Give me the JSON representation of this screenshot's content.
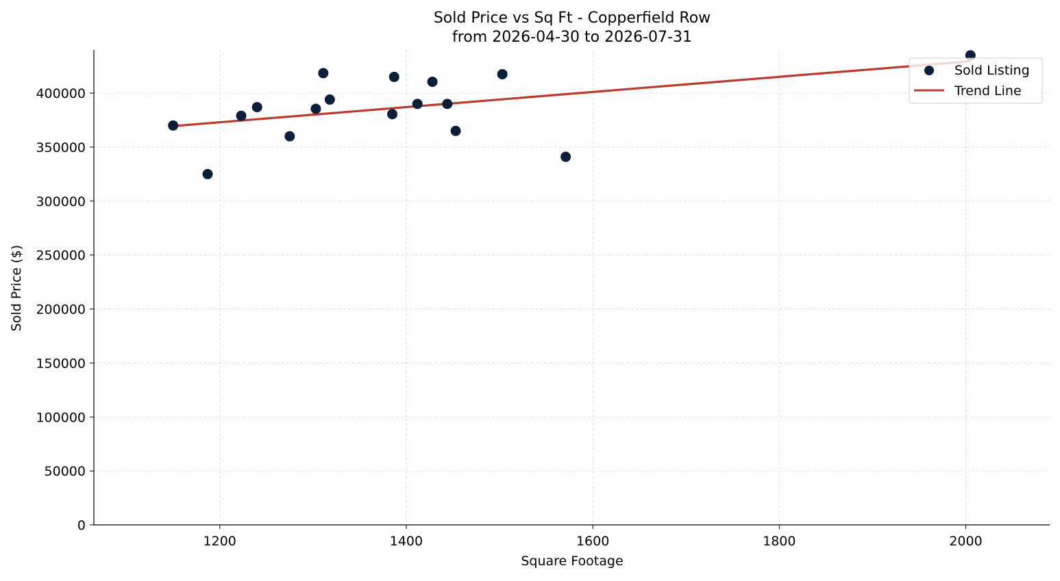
{
  "chart_data": {
    "type": "scatter",
    "title": "Sold Price vs Sq Ft - Copperfield Row",
    "subtitle": "from 2026-04-30 to 2026-07-31",
    "xlabel": "Square Footage",
    "ylabel": "Sold Price ($)",
    "xlim": [
      1065,
      2090
    ],
    "ylim": [
      0,
      440000
    ],
    "xticks": [
      1200,
      1400,
      1600,
      1800,
      2000
    ],
    "yticks": [
      0,
      50000,
      100000,
      150000,
      200000,
      250000,
      300000,
      350000,
      400000
    ],
    "grid": true,
    "legend_position": "top-right",
    "series": [
      {
        "name": "Sold Listing",
        "kind": "scatter",
        "color": "#0b1f3a",
        "points": [
          {
            "x": 1150,
            "y": 370000
          },
          {
            "x": 1187,
            "y": 325000
          },
          {
            "x": 1223,
            "y": 379000
          },
          {
            "x": 1240,
            "y": 387000
          },
          {
            "x": 1275,
            "y": 360000
          },
          {
            "x": 1303,
            "y": 385500
          },
          {
            "x": 1311,
            "y": 418500
          },
          {
            "x": 1318,
            "y": 394000
          },
          {
            "x": 1385,
            "y": 380500
          },
          {
            "x": 1387,
            "y": 415000
          },
          {
            "x": 1412,
            "y": 390000
          },
          {
            "x": 1428,
            "y": 410500
          },
          {
            "x": 1444,
            "y": 390000
          },
          {
            "x": 1453,
            "y": 365000
          },
          {
            "x": 1503,
            "y": 417500
          },
          {
            "x": 1571,
            "y": 341000
          },
          {
            "x": 2005,
            "y": 435000
          }
        ]
      },
      {
        "name": "Trend Line",
        "kind": "line",
        "color": "#b83c2e",
        "points": [
          {
            "x": 1150,
            "y": 369500
          },
          {
            "x": 2005,
            "y": 429500
          }
        ]
      }
    ]
  }
}
